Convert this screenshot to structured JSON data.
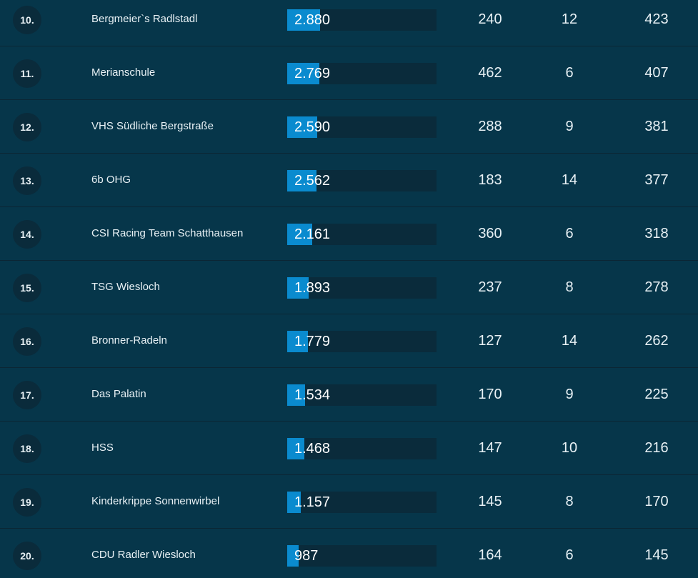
{
  "colors": {
    "background": "#06364a",
    "row_divider": "#0b2634",
    "rank_circle": "#0a2b3b",
    "bar_track": "#0a2b3b",
    "bar_fill": "#0a8bcf"
  },
  "rows": [
    {
      "rank": "10.",
      "name": "Bergmeier`s Radlstadl",
      "km": "2.880",
      "km_value": 2880,
      "col2": "240",
      "col3": "12",
      "col4": "423"
    },
    {
      "rank": "11.",
      "name": "Merianschule",
      "km": "2.769",
      "km_value": 2769,
      "col2": "462",
      "col3": "6",
      "col4": "407"
    },
    {
      "rank": "12.",
      "name": "VHS Südliche Bergstraße",
      "km": "2.590",
      "km_value": 2590,
      "col2": "288",
      "col3": "9",
      "col4": "381"
    },
    {
      "rank": "13.",
      "name": "6b OHG",
      "km": "2.562",
      "km_value": 2562,
      "col2": "183",
      "col3": "14",
      "col4": "377"
    },
    {
      "rank": "14.",
      "name": "CSI Racing Team Schatthausen",
      "km": "2.161",
      "km_value": 2161,
      "col2": "360",
      "col3": "6",
      "col4": "318"
    },
    {
      "rank": "15.",
      "name": "TSG Wiesloch",
      "km": "1.893",
      "km_value": 1893,
      "col2": "237",
      "col3": "8",
      "col4": "278"
    },
    {
      "rank": "16.",
      "name": "Bronner-Radeln",
      "km": "1.779",
      "km_value": 1779,
      "col2": "127",
      "col3": "14",
      "col4": "262"
    },
    {
      "rank": "17.",
      "name": "Das Palatin",
      "km": "1.534",
      "km_value": 1534,
      "col2": "170",
      "col3": "9",
      "col4": "225"
    },
    {
      "rank": "18.",
      "name": "HSS",
      "km": "1.468",
      "km_value": 1468,
      "col2": "147",
      "col3": "10",
      "col4": "216"
    },
    {
      "rank": "19.",
      "name": "Kinderkrippe Sonnenwirbel",
      "km": "1.157",
      "km_value": 1157,
      "col2": "145",
      "col3": "8",
      "col4": "170"
    },
    {
      "rank": "20.",
      "name": "CDU Radler Wiesloch",
      "km": "987",
      "km_value": 987,
      "col2": "164",
      "col3": "6",
      "col4": "145"
    }
  ]
}
